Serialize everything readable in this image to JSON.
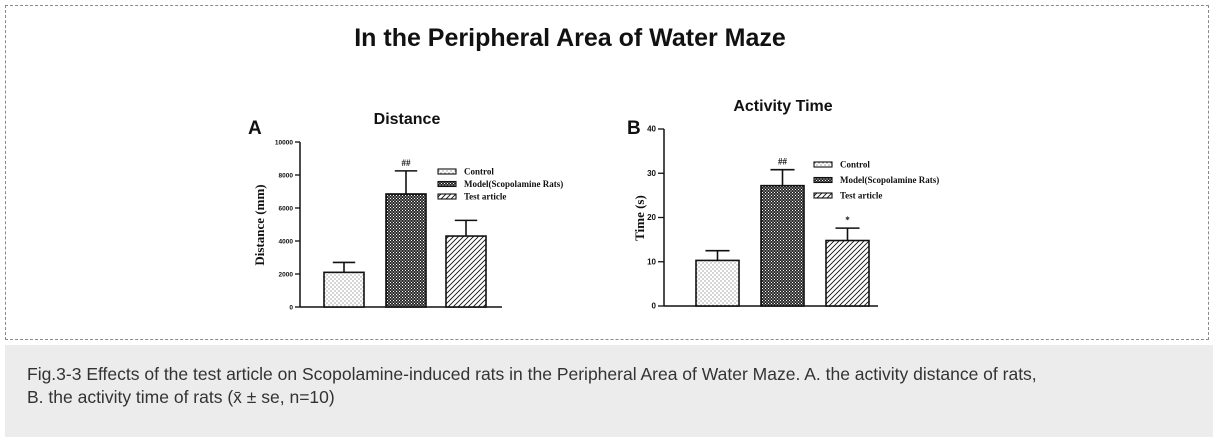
{
  "main_title": "In the Peripheral Area of Water Maze",
  "caption": {
    "line1": "Fig.3-3 Effects of the test article on Scopolamine-induced rats in the Peripheral Area of Water Maze. A. the activity distance of rats,",
    "line2": "B. the activity time of rats (x̄ ± se, n=10)"
  },
  "chart_data": [
    {
      "type": "bar",
      "panel": "A",
      "title": "Distance",
      "xlabel": "",
      "ylabel": "Distance (mm)",
      "ylim": [
        0,
        10000
      ],
      "yticks": [
        0,
        2000,
        4000,
        6000,
        8000,
        10000
      ],
      "ytick_labels": [
        "0",
        "2000",
        "4000",
        "6000",
        "8000",
        "10000"
      ],
      "categories": [
        "Control",
        "Model(Scopolamine Rats)",
        "Test article"
      ],
      "values": [
        2100,
        6850,
        4300
      ],
      "errors": [
        600,
        1400,
        950
      ],
      "annotations": [
        "",
        "##",
        ""
      ],
      "legend": [
        "Control",
        "Model(Scopolamine Rats)",
        "Test article"
      ],
      "legend_position": "top-right",
      "grid": false
    },
    {
      "type": "bar",
      "panel": "B",
      "title": "Activity Time",
      "xlabel": "",
      "ylabel": "Time (s)",
      "ylim": [
        0,
        40
      ],
      "yticks": [
        0,
        10,
        20,
        30,
        40
      ],
      "ytick_labels": [
        "0",
        "10",
        "20",
        "30",
        "40"
      ],
      "categories": [
        "Control",
        "Model(Scopolamine Rats)",
        "Test article"
      ],
      "values": [
        10.3,
        27.2,
        14.8
      ],
      "errors": [
        2.2,
        3.6,
        2.8
      ],
      "annotations": [
        "",
        "##",
        "*"
      ],
      "legend": [
        "Control",
        "Model(Scopolamine Rats)",
        "Test article"
      ],
      "legend_position": "top-right",
      "grid": false
    }
  ]
}
